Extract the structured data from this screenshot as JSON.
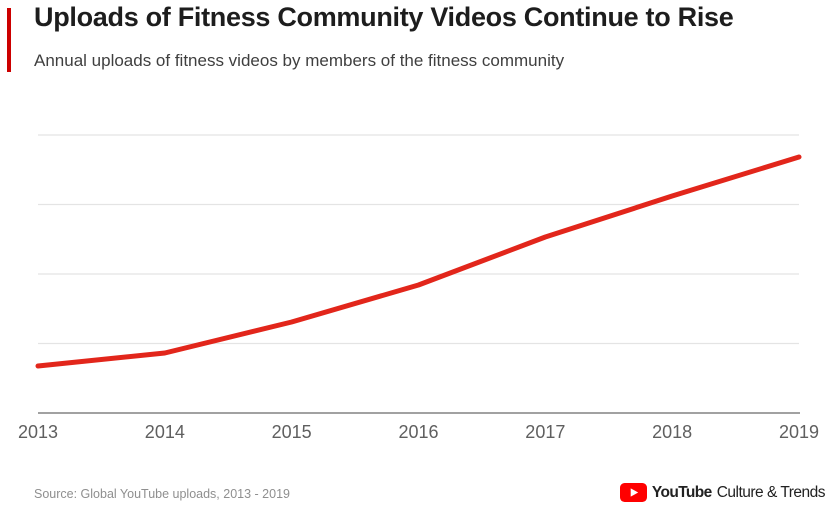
{
  "header": {
    "title": "Uploads of Fitness Community Videos Continue to Rise",
    "subtitle": "Annual uploads of fitness videos by members of the fitness community"
  },
  "chart_data": {
    "type": "line",
    "title": "Uploads of Fitness Community Videos Continue to Rise",
    "categories": [
      "2013",
      "2014",
      "2015",
      "2016",
      "2017",
      "2018",
      "2019"
    ],
    "values": [
      47,
      60,
      91,
      128,
      176,
      217,
      256
    ],
    "units": "relative uploads (y-axis unlabeled in source image)",
    "xlabel": "",
    "ylabel": "",
    "ylim": [
      0,
      280
    ],
    "y_gridlines": 4,
    "grid": "horizontal-only",
    "legend": "none",
    "line_color": "#e2261b"
  },
  "footer": {
    "source": "Source: Global YouTube uploads, 2013 - 2019",
    "logo": {
      "icon": "youtube-play-icon",
      "brand": "YouTube",
      "suffix": "Culture & Trends"
    }
  },
  "colors": {
    "accent_bar": "#cc0000",
    "line": "#e2261b",
    "gridline": "#e4e4e4",
    "axis_line": "#828282",
    "play_icon": "#ff0000",
    "title_text": "#1d1d1d",
    "subtitle_text": "#3f3f3f",
    "tick_text": "#5f5f5f",
    "source_text": "#8f8f8f"
  }
}
